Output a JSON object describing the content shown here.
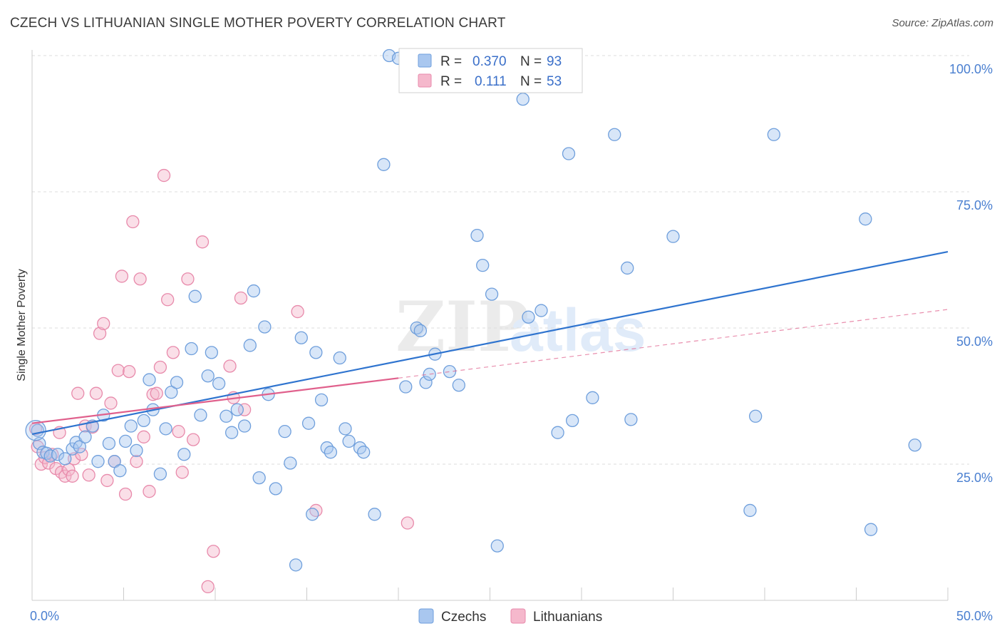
{
  "title": "CZECH VS LITHUANIAN SINGLE MOTHER POVERTY CORRELATION CHART",
  "source": "Source: ZipAtlas.com",
  "watermark": {
    "zip": "ZIP",
    "atlas": "atlas"
  },
  "colors": {
    "czech_fill": "#a9c7ef",
    "czech_stroke": "#6f9fdc",
    "czech_line": "#2f74cf",
    "lith_fill": "#f5b8cc",
    "lith_stroke": "#e88aab",
    "lith_line": "#e0608c",
    "tick_label": "#4a7fd0",
    "grid": "#dddddd"
  },
  "legend": {
    "rows": [
      {
        "r_label": "R =",
        "r_value": "0.370",
        "n_label": "N =",
        "n_value": "93"
      },
      {
        "r_label": "R =",
        "r_value": "0.111",
        "n_label": "N =",
        "n_value": "53"
      }
    ]
  },
  "bottom_legend": [
    "Czechs",
    "Lithuanians"
  ],
  "chart_data": {
    "type": "scatter",
    "title": "CZECH VS LITHUANIAN SINGLE MOTHER POVERTY CORRELATION CHART",
    "xlabel": "",
    "ylabel": "Single Mother Poverty",
    "xlim": [
      0,
      50
    ],
    "ylim": [
      0,
      102
    ],
    "x_tick_labels": [
      {
        "value": 0,
        "label": "0.0%"
      },
      {
        "value": 50,
        "label": "50.0%"
      }
    ],
    "y_tick_labels": [
      {
        "value": 25,
        "label": "25.0%"
      },
      {
        "value": 50,
        "label": "50.0%"
      },
      {
        "value": 75,
        "label": "75.0%"
      },
      {
        "value": 100,
        "label": "100.0%"
      }
    ],
    "y_gridlines": [
      25,
      50,
      75,
      100
    ],
    "x_minor_ticks": [
      0,
      5,
      10,
      15,
      20,
      25,
      30,
      35,
      40,
      45,
      50
    ],
    "legend_position": "top-center",
    "series": [
      {
        "name": "Czechs",
        "r": 0.37,
        "n": 93,
        "trend": {
          "x": [
            0,
            50
          ],
          "y": [
            30.5,
            64.0
          ]
        },
        "points": [
          [
            0.3,
            31.2
          ],
          [
            0.4,
            28.8
          ],
          [
            0.6,
            27.2
          ],
          [
            0.8,
            27.0
          ],
          [
            1.0,
            26.5
          ],
          [
            1.4,
            26.8
          ],
          [
            1.8,
            26.0
          ],
          [
            2.2,
            27.8
          ],
          [
            2.4,
            29.0
          ],
          [
            2.6,
            28.2
          ],
          [
            2.9,
            30.0
          ],
          [
            3.3,
            32.0
          ],
          [
            3.6,
            25.5
          ],
          [
            3.9,
            34.0
          ],
          [
            4.2,
            28.8
          ],
          [
            4.5,
            25.5
          ],
          [
            4.8,
            23.8
          ],
          [
            5.1,
            29.2
          ],
          [
            5.4,
            32.0
          ],
          [
            5.7,
            27.5
          ],
          [
            6.1,
            33.0
          ],
          [
            6.4,
            40.5
          ],
          [
            6.6,
            35.0
          ],
          [
            7.0,
            23.2
          ],
          [
            7.3,
            31.5
          ],
          [
            7.6,
            38.2
          ],
          [
            7.9,
            40.0
          ],
          [
            8.3,
            26.8
          ],
          [
            8.7,
            46.2
          ],
          [
            8.9,
            55.8
          ],
          [
            9.2,
            34.0
          ],
          [
            9.6,
            41.2
          ],
          [
            9.8,
            45.5
          ],
          [
            10.2,
            39.8
          ],
          [
            10.6,
            33.8
          ],
          [
            10.9,
            30.8
          ],
          [
            11.2,
            35.0
          ],
          [
            11.6,
            32.0
          ],
          [
            11.9,
            46.8
          ],
          [
            12.1,
            56.8
          ],
          [
            12.4,
            22.5
          ],
          [
            12.7,
            50.2
          ],
          [
            12.9,
            37.8
          ],
          [
            13.3,
            20.5
          ],
          [
            13.8,
            31.0
          ],
          [
            14.1,
            25.2
          ],
          [
            14.4,
            6.5
          ],
          [
            14.7,
            48.2
          ],
          [
            15.1,
            32.5
          ],
          [
            15.3,
            15.8
          ],
          [
            15.5,
            45.5
          ],
          [
            15.8,
            36.8
          ],
          [
            16.1,
            28.0
          ],
          [
            16.3,
            27.2
          ],
          [
            16.8,
            44.5
          ],
          [
            17.1,
            31.5
          ],
          [
            17.3,
            29.2
          ],
          [
            17.9,
            28.0
          ],
          [
            18.1,
            27.2
          ],
          [
            18.7,
            15.8
          ],
          [
            19.2,
            80.0
          ],
          [
            19.5,
            100.0
          ],
          [
            20.0,
            99.5
          ],
          [
            20.4,
            39.2
          ],
          [
            21.0,
            50.0
          ],
          [
            21.2,
            49.5
          ],
          [
            21.5,
            40.0
          ],
          [
            21.7,
            41.5
          ],
          [
            22.0,
            45.2
          ],
          [
            22.8,
            42.0
          ],
          [
            23.3,
            39.5
          ],
          [
            23.5,
            100.0
          ],
          [
            24.3,
            67.0
          ],
          [
            24.6,
            61.5
          ],
          [
            25.1,
            56.2
          ],
          [
            25.4,
            10.0
          ],
          [
            26.8,
            92.0
          ],
          [
            27.1,
            52.0
          ],
          [
            27.8,
            53.2
          ],
          [
            28.7,
            30.8
          ],
          [
            29.3,
            82.0
          ],
          [
            29.5,
            33.0
          ],
          [
            30.6,
            37.2
          ],
          [
            31.8,
            85.5
          ],
          [
            32.5,
            61.0
          ],
          [
            32.7,
            33.2
          ],
          [
            35.0,
            66.8
          ],
          [
            39.2,
            16.5
          ],
          [
            39.5,
            33.8
          ],
          [
            40.5,
            85.5
          ],
          [
            45.5,
            70.0
          ],
          [
            45.8,
            13.0
          ],
          [
            48.2,
            28.5
          ]
        ]
      },
      {
        "name": "Lithuanians",
        "r": 0.111,
        "n": 53,
        "trend": {
          "x": [
            0,
            20
          ],
          "y": [
            32.5,
            40.8
          ]
        },
        "trend_dashed": {
          "x": [
            20,
            50
          ],
          "y": [
            40.8,
            53.4
          ]
        },
        "points": [
          [
            0.2,
            31.5
          ],
          [
            0.3,
            28.2
          ],
          [
            0.5,
            25.0
          ],
          [
            0.7,
            26.2
          ],
          [
            0.9,
            25.2
          ],
          [
            1.1,
            26.8
          ],
          [
            1.3,
            24.2
          ],
          [
            1.5,
            30.8
          ],
          [
            1.6,
            23.5
          ],
          [
            1.8,
            22.8
          ],
          [
            2.0,
            24.0
          ],
          [
            2.2,
            22.8
          ],
          [
            2.3,
            26.0
          ],
          [
            2.5,
            38.0
          ],
          [
            2.7,
            26.8
          ],
          [
            2.9,
            32.0
          ],
          [
            3.1,
            23.0
          ],
          [
            3.3,
            31.8
          ],
          [
            3.5,
            38.0
          ],
          [
            3.7,
            49.0
          ],
          [
            3.9,
            50.8
          ],
          [
            4.1,
            22.0
          ],
          [
            4.3,
            36.2
          ],
          [
            4.5,
            25.5
          ],
          [
            4.7,
            42.2
          ],
          [
            4.9,
            59.5
          ],
          [
            5.1,
            19.5
          ],
          [
            5.3,
            42.0
          ],
          [
            5.5,
            69.5
          ],
          [
            5.7,
            25.5
          ],
          [
            5.9,
            59.0
          ],
          [
            6.1,
            30.0
          ],
          [
            6.4,
            20.0
          ],
          [
            6.6,
            37.8
          ],
          [
            6.8,
            38.0
          ],
          [
            7.0,
            42.8
          ],
          [
            7.2,
            78.0
          ],
          [
            7.4,
            55.2
          ],
          [
            7.7,
            45.5
          ],
          [
            8.0,
            31.0
          ],
          [
            8.2,
            23.5
          ],
          [
            8.5,
            59.0
          ],
          [
            8.8,
            29.5
          ],
          [
            9.3,
            65.8
          ],
          [
            9.6,
            2.5
          ],
          [
            9.9,
            9.0
          ],
          [
            10.8,
            43.0
          ],
          [
            11.0,
            37.2
          ],
          [
            11.4,
            55.5
          ],
          [
            11.6,
            35.0
          ],
          [
            14.5,
            53.0
          ],
          [
            15.5,
            16.5
          ],
          [
            20.5,
            14.2
          ]
        ]
      }
    ]
  }
}
